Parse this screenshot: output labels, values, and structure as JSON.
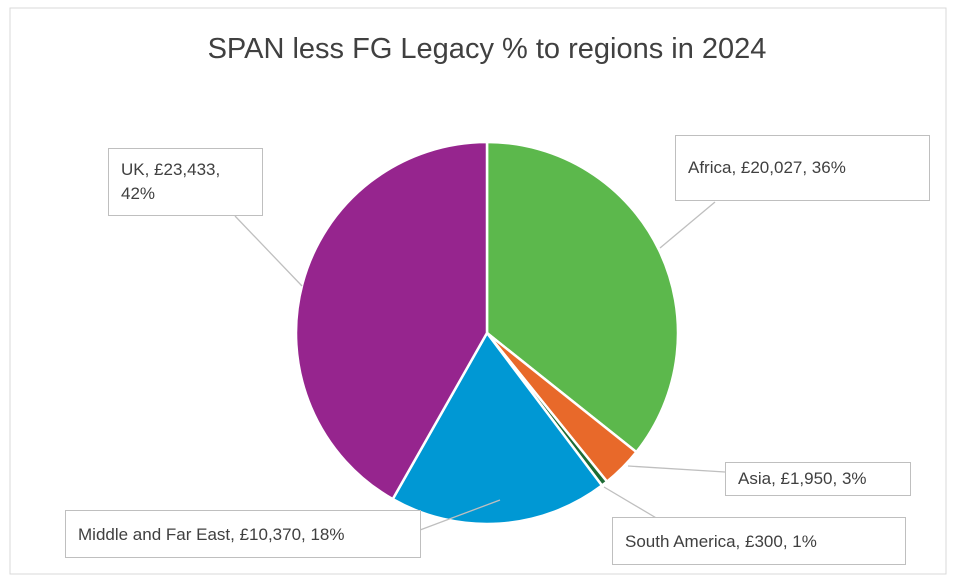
{
  "chart_data": {
    "type": "pie",
    "title": "SPAN less FG Legacy % to regions in 2024",
    "categories": [
      "Africa",
      "Asia",
      "South America",
      "Middle and Far East",
      "UK"
    ],
    "values": [
      20027,
      1950,
      300,
      10370,
      23433
    ],
    "value_labels": [
      "Africa, £20,027, 36%",
      "Asia, £1,950, 3%",
      "South America, £300, 1%",
      "Middle and Far East, £10,370, 18%",
      "UK, £23,433, 42%"
    ],
    "colors": [
      "#5cb84c",
      "#e8692a",
      "#1e6b35",
      "#0098d4",
      "#96258e"
    ]
  }
}
